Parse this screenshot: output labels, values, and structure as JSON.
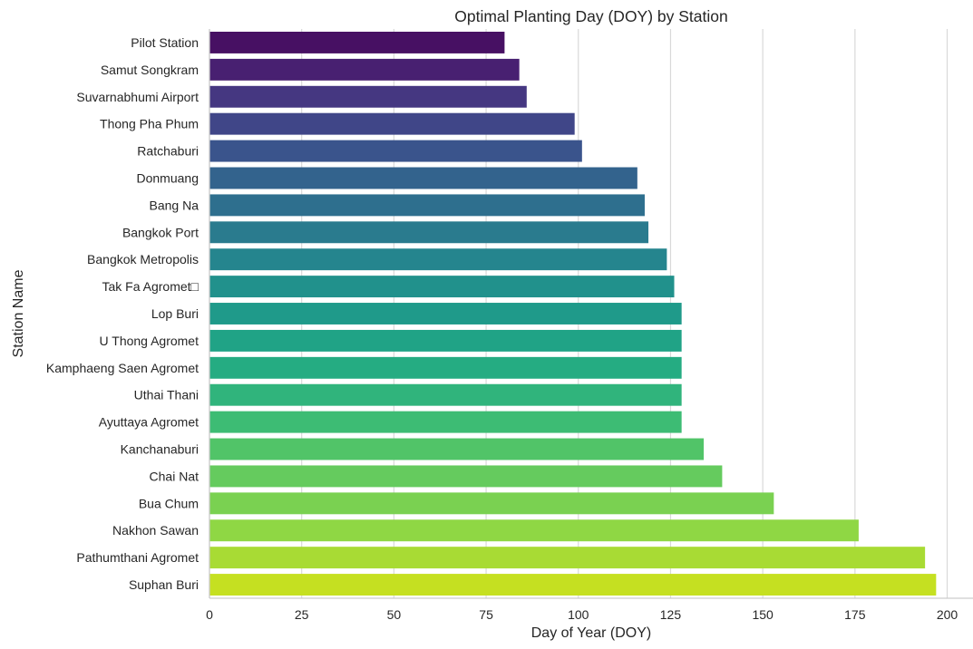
{
  "chart_data": {
    "type": "bar",
    "orientation": "horizontal",
    "title": "Optimal Planting Day (DOY) by Station",
    "xlabel": "Day of Year (DOY)",
    "ylabel": "Station Name",
    "xlim": [
      0,
      207
    ],
    "xticks": [
      "0",
      "25",
      "50",
      "75",
      "100",
      "125",
      "150",
      "175",
      "200"
    ],
    "grid": "vertical",
    "colormap": "viridis",
    "categories": [
      "Pilot Station",
      "Samut Songkram",
      "Suvarnabhumi Airport",
      "Thong Pha Phum",
      "Ratchaburi",
      "Donmuang",
      "Bang Na",
      "Bangkok Port",
      "Bangkok Metropolis",
      "Tak Fa Agromet□",
      "Lop Buri",
      "U Thong Agromet",
      "Kamphaeng Saen Agromet",
      "Uthai Thani",
      "Ayuttaya Agromet",
      "Kanchanaburi",
      "Chai Nat",
      "Bua Chum",
      "Nakhon Sawan",
      "Pathumthani Agromet",
      "Suphan Buri"
    ],
    "values": [
      80,
      84,
      86,
      99,
      101,
      116,
      118,
      119,
      124,
      126,
      128,
      128,
      128,
      128,
      128,
      134,
      139,
      153,
      176,
      194,
      197
    ],
    "colors": [
      "#471063",
      "#482071",
      "#453781",
      "#404688",
      "#3a548c",
      "#33638d",
      "#2e6f8e",
      "#2a7b8e",
      "#25858e",
      "#21918c",
      "#1f9a8a",
      "#20a386",
      "#25ac82",
      "#30b47c",
      "#3dbc74",
      "#51c468",
      "#65cb5e",
      "#7ad151",
      "#8fd744",
      "#a8db34",
      "#c5e021"
    ]
  }
}
